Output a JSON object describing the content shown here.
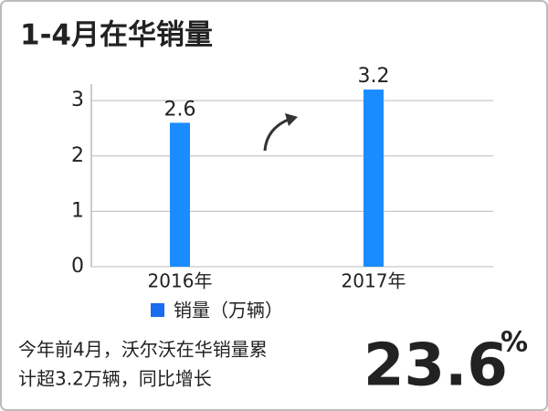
{
  "chart_data": {
    "type": "bar",
    "title": "1-4月在华销量",
    "categories": [
      "2016年",
      "2017年"
    ],
    "series": [
      {
        "name": "销量（万辆）",
        "color": "#1a8cff",
        "values": [
          2.6,
          3.2
        ]
      }
    ],
    "ylim": [
      0,
      3.3
    ],
    "yticks": [
      0,
      1,
      2,
      3
    ],
    "grid": true,
    "annotations": {
      "text_lines": [
        "今年前4月，沃尔沃在华销量累",
        "计超3.2万辆，同比增长"
      ],
      "highlight": "23.6",
      "highlight_unit": "%"
    }
  }
}
